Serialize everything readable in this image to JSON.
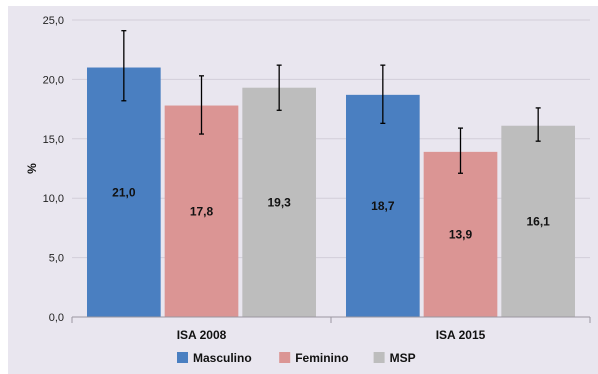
{
  "chart_data": {
    "type": "bar",
    "title": "",
    "xlabel": "",
    "ylabel": "%",
    "ylim": [
      0,
      25
    ],
    "yticks": [
      0,
      5,
      10,
      15,
      20,
      25
    ],
    "ytick_labels": [
      "0,0",
      "5,0",
      "10,0",
      "15,0",
      "20,0",
      "25,0"
    ],
    "grid": true,
    "legend_position": "bottom",
    "categories": [
      "ISA 2008",
      "ISA 2015"
    ],
    "series": [
      {
        "name": "Masculino",
        "color": "#4a7fc1",
        "values": [
          21.0,
          18.7
        ],
        "labels": [
          "21,0",
          "18,7"
        ],
        "error_low": [
          18.2,
          16.3
        ],
        "error_high": [
          24.1,
          21.2
        ]
      },
      {
        "name": "Feminino",
        "color": "#db9594",
        "values": [
          17.8,
          13.9
        ],
        "labels": [
          "17,8",
          "13,9"
        ],
        "error_low": [
          15.4,
          12.1
        ],
        "error_high": [
          20.3,
          15.9
        ]
      },
      {
        "name": "MSP",
        "color": "#bdbdbd",
        "values": [
          19.3,
          16.1
        ],
        "labels": [
          "19,3",
          "16,1"
        ],
        "error_low": [
          17.4,
          14.8
        ],
        "error_high": [
          21.2,
          17.6
        ]
      }
    ]
  }
}
